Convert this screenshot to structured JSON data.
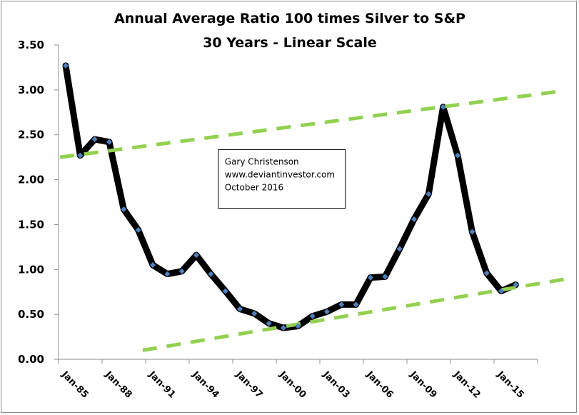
{
  "chart_data": {
    "type": "line",
    "title": "Annual Average Ratio 100 times Silver to S&P",
    "subtitle": "30 Years - Linear Scale",
    "xlabel": "",
    "ylabel": "",
    "ylim": [
      0,
      3.5
    ],
    "yticks": [
      "0.00",
      "0.50",
      "1.00",
      "1.50",
      "2.00",
      "2.50",
      "3.00",
      "3.50"
    ],
    "ytick_values": [
      0,
      0.5,
      1.0,
      1.5,
      2.0,
      2.5,
      3.0,
      3.5
    ],
    "xlim": [
      1985,
      2018
    ],
    "xticks": [
      "Jan-85",
      "Jan-88",
      "Jan-91",
      "Jan-94",
      "Jan-97",
      "Jan-00",
      "Jan-03",
      "Jan-06",
      "Jan-09",
      "Jan-12",
      "Jan-15"
    ],
    "xtick_years": [
      1985,
      1988,
      1991,
      1994,
      1997,
      2000,
      2003,
      2006,
      2009,
      2012,
      2015
    ],
    "grid": false,
    "legend": "none",
    "series": [
      {
        "name": "Ratio 100x Silver to S&P",
        "color": "#000000",
        "marker_color": "#4f81bd",
        "x": [
          1985,
          1986,
          1987,
          1988,
          1989,
          1990,
          1991,
          1992,
          1993,
          1994,
          1995,
          1996,
          1997,
          1998,
          1999,
          2000,
          2001,
          2002,
          2003,
          2004,
          2005,
          2006,
          2007,
          2008,
          2009,
          2010,
          2011,
          2012,
          2013,
          2014,
          2015,
          2016
        ],
        "values": [
          3.27,
          2.27,
          2.45,
          2.42,
          1.67,
          1.44,
          1.05,
          0.95,
          0.98,
          1.16,
          0.95,
          0.76,
          0.56,
          0.51,
          0.4,
          0.35,
          0.37,
          0.48,
          0.53,
          0.61,
          0.61,
          0.91,
          0.92,
          1.23,
          1.56,
          1.84,
          2.81,
          2.27,
          1.42,
          0.96,
          0.76,
          0.83
        ]
      }
    ],
    "trendlines": [
      {
        "name": "upper-trendline",
        "color": "#92d050",
        "style": "dashed",
        "start": [
          1985.1,
          2.25
        ],
        "end": [
          2019.8,
          2.99
        ]
      },
      {
        "name": "lower-trendline",
        "color": "#92d050",
        "style": "dashed",
        "start": [
          1990.8,
          0.1
        ],
        "end": [
          2019.8,
          0.89
        ]
      }
    ],
    "annotations": [
      {
        "lines": [
          "Gary Christenson",
          "www.deviantinvestor.com",
          "October 2016"
        ],
        "boxed": true,
        "anchor": [
          1996.3,
          2.0
        ]
      }
    ]
  }
}
